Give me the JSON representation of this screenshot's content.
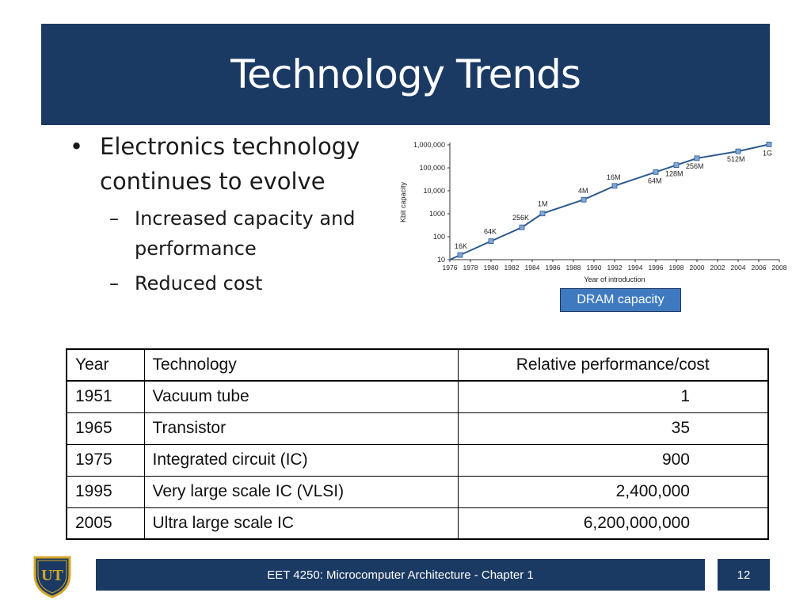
{
  "slide": {
    "title": "Technology Trends",
    "bullets": [
      {
        "level": 1,
        "text": "Electronics technology continues to evolve"
      },
      {
        "level": 2,
        "text": "Increased capacity and performance"
      },
      {
        "level": 2,
        "text": "Reduced cost"
      }
    ],
    "bullet_mark_l1": "•",
    "bullet_mark_l2": "–"
  },
  "chart_caption": "DRAM capacity",
  "chart_data": {
    "type": "line",
    "xlabel": "Year of introduction",
    "ylabel": "Kbit capacity",
    "y_scale": "log",
    "ylim": [
      10,
      1000000
    ],
    "xlim": [
      1976,
      2008
    ],
    "x_ticks": [
      "1976",
      "1978",
      "1980",
      "1982",
      "1984",
      "1986",
      "1988",
      "1990",
      "1992",
      "1994",
      "1996",
      "1998",
      "2000",
      "2002",
      "2004",
      "2006",
      "2008"
    ],
    "y_ticks": [
      {
        "value": 10,
        "label": "10"
      },
      {
        "value": 100,
        "label": "100"
      },
      {
        "value": 1000,
        "label": "1000"
      },
      {
        "value": 10000,
        "label": "10,000"
      },
      {
        "value": 100000,
        "label": "100,000"
      },
      {
        "value": 1000000,
        "label": "1,000,000"
      }
    ],
    "points": [
      {
        "x": 1977,
        "y": 16,
        "label": "16K"
      },
      {
        "x": 1980,
        "y": 64,
        "label": "64K"
      },
      {
        "x": 1983,
        "y": 256,
        "label": "256K"
      },
      {
        "x": 1985,
        "y": 1024,
        "label": "1M"
      },
      {
        "x": 1989,
        "y": 4096,
        "label": "4M"
      },
      {
        "x": 1992,
        "y": 16384,
        "label": "16M"
      },
      {
        "x": 1996,
        "y": 65536,
        "label": "64M"
      },
      {
        "x": 1998,
        "y": 131072,
        "label": "128M"
      },
      {
        "x": 2000,
        "y": 262144,
        "label": "256M"
      },
      {
        "x": 2004,
        "y": 524288,
        "label": "512M"
      },
      {
        "x": 2007,
        "y": 1048576,
        "label": "1G"
      }
    ],
    "line_color": "#2e5a8e",
    "marker_color": "#7fa6d8"
  },
  "table": {
    "headers": [
      "Year",
      "Technology",
      "Relative performance/cost"
    ],
    "rows": [
      [
        "1951",
        "Vacuum tube",
        "1"
      ],
      [
        "1965",
        "Transistor",
        "35"
      ],
      [
        "1975",
        "Integrated circuit (IC)",
        "900"
      ],
      [
        "1995",
        "Very large scale IC (VLSI)",
        "2,400,000"
      ],
      [
        "2005",
        "Ultra large scale IC",
        "6,200,000,000"
      ]
    ]
  },
  "footer": {
    "text": "EET 4250: Microcomputer Architecture - Chapter 1",
    "page_number": "12",
    "logo_text": "UT",
    "logo_icon": "university-shield-logo"
  },
  "colors": {
    "brand_navy": "#1b3a63",
    "caption_blue": "#3f7ac0",
    "logo_gold": "#d4a62a"
  }
}
